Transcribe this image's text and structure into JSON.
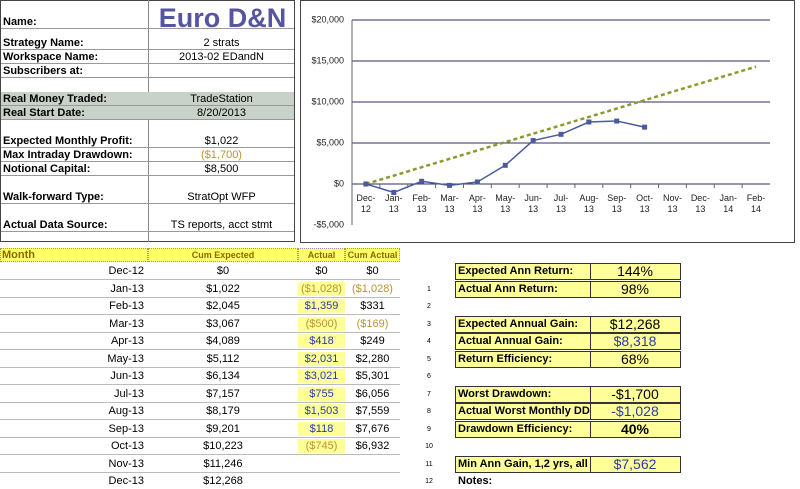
{
  "title": "Euro D&N",
  "info": [
    {
      "label": "Name:",
      "value": null
    },
    {
      "label": "Strategy Name:",
      "value": "2 strats"
    },
    {
      "label": "Workspace Name:",
      "value": "2013-02 EDandN"
    },
    {
      "label": "Subscribers at:",
      "value": null
    },
    {
      "label": "Real Money Traded:",
      "value": "TradeStation"
    },
    {
      "label": "Real Start Date:",
      "value": "8/20/2013"
    },
    {
      "label": "Expected Monthly Profit:",
      "value": "$1,022"
    },
    {
      "label": "Max Intraday Drawdown:",
      "value": "($1,700)"
    },
    {
      "label": "Notional Capital:",
      "value": "$8,500"
    },
    {
      "label": "Walk-forward Type:",
      "value": "StratOpt WFP"
    },
    {
      "label": "Actual Data Source:",
      "value": "TS reports, acct stmt"
    }
  ],
  "table": {
    "headers": [
      "Month",
      "Cum Expected",
      "Actual",
      "Cum Actual"
    ],
    "rows": [
      [
        "Dec-12",
        "$0",
        "$0",
        "$0"
      ],
      [
        "Jan-13",
        "$1,022",
        "($1,028)",
        "($1,028)"
      ],
      [
        "Feb-13",
        "$2,045",
        "$1,359",
        "$331"
      ],
      [
        "Mar-13",
        "$3,067",
        "($500)",
        "($169)"
      ],
      [
        "Apr-13",
        "$4,089",
        "$418",
        "$249"
      ],
      [
        "May-13",
        "$5,112",
        "$2,031",
        "$2,280"
      ],
      [
        "Jun-13",
        "$6,134",
        "$3,021",
        "$5,301"
      ],
      [
        "Jul-13",
        "$7,157",
        "$755",
        "$6,056"
      ],
      [
        "Aug-13",
        "$8,179",
        "$1,503",
        "$7,559"
      ],
      [
        "Sep-13",
        "$9,201",
        "$118",
        "$7,676"
      ],
      [
        "Oct-13",
        "$10,223",
        "($745)",
        "$6,932"
      ],
      [
        "Nov-13",
        "$11,246",
        null,
        null
      ],
      [
        "Dec-13",
        "$12,268",
        null,
        null
      ]
    ]
  },
  "row_numbers": [
    1,
    2,
    3,
    4,
    5,
    6,
    7,
    8,
    9,
    10,
    11,
    12
  ],
  "stats": [
    {
      "label": "Expected Ann Return:",
      "value": "144%"
    },
    {
      "label": "Actual Ann Return:",
      "value": "98%"
    },
    null,
    {
      "label": "Expected Annual Gain:",
      "value": "$12,268"
    },
    {
      "label": "Actual Annual Gain:",
      "value": "$8,318"
    },
    {
      "label": "Return Efficiency:",
      "value": "68%"
    },
    null,
    {
      "label": "Worst Drawdown:",
      "value": "-$1,700"
    },
    {
      "label": "Actual Worst Monthly DD:",
      "value": "-$1,028"
    },
    {
      "label": "Drawdown Efficiency:",
      "value": "40%"
    },
    null,
    {
      "label": "Min Ann Gain, 1,2 yrs, all",
      "value": "$7,562"
    },
    {
      "label": "Notes:",
      "value": null
    }
  ],
  "chart_data": {
    "type": "line",
    "categories": [
      "Dec-12",
      "Jan-13",
      "Feb-13",
      "Mar-13",
      "Apr-13",
      "May-13",
      "Jun-13",
      "Jul-13",
      "Aug-13",
      "Sep-13",
      "Oct-13",
      "Nov-13",
      "Dec-13",
      "Jan-14",
      "Feb-14"
    ],
    "series": [
      {
        "name": "Cum Expected",
        "color": "#8c9a2c",
        "dashed": true,
        "values": [
          0,
          1022,
          2045,
          3067,
          4089,
          5112,
          6134,
          7157,
          8179,
          9201,
          10223,
          11246,
          12268,
          13290,
          14313
        ]
      },
      {
        "name": "Cum Actual",
        "color": "#4a5a9c",
        "dashed": false,
        "values": [
          0,
          -1028,
          331,
          -169,
          249,
          2280,
          5301,
          6056,
          7559,
          7676,
          6932,
          null,
          null,
          null,
          null
        ]
      }
    ],
    "ylim": [
      -5000,
      20000
    ],
    "yticks": [
      {
        "value": -5000,
        "label": "-$5,000"
      },
      {
        "value": 0,
        "label": "$0"
      },
      {
        "value": 5000,
        "label": "$5,000"
      },
      {
        "value": 10000,
        "label": "$10,000"
      },
      {
        "value": 15000,
        "label": "$15,000"
      },
      {
        "value": 20000,
        "label": "$20,000"
      }
    ],
    "grid": true
  }
}
